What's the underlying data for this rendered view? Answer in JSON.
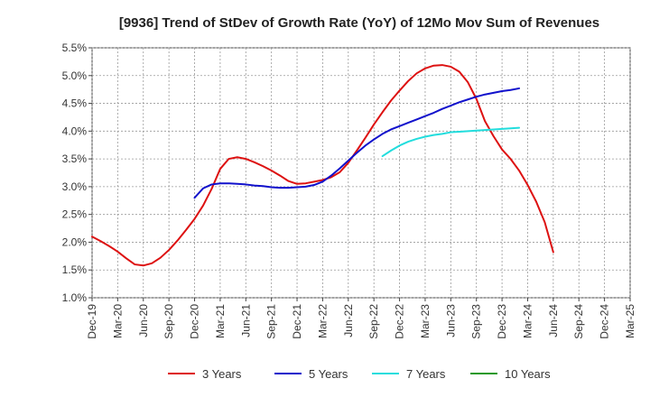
{
  "chart_data": {
    "type": "line",
    "title": "[9936]  Trend of StDev of Growth Rate (YoY) of 12Mo Mov Sum of Revenues",
    "xlabel": "",
    "ylabel": "",
    "ylim": [
      1.0,
      5.5
    ],
    "y_ticks": [
      1.0,
      1.5,
      2.0,
      2.5,
      3.0,
      3.5,
      4.0,
      4.5,
      5.0,
      5.5
    ],
    "y_tick_labels": [
      "1.0%",
      "1.5%",
      "2.0%",
      "2.5%",
      "3.0%",
      "3.5%",
      "4.0%",
      "4.5%",
      "5.0%",
      "5.5%"
    ],
    "x_tick_labels": [
      "Dec-19",
      "Mar-20",
      "Jun-20",
      "Sep-20",
      "Dec-20",
      "Mar-21",
      "Jun-21",
      "Sep-21",
      "Dec-21",
      "Mar-22",
      "Jun-22",
      "Sep-22",
      "Dec-22",
      "Mar-23",
      "Jun-23",
      "Sep-23",
      "Dec-23",
      "Mar-24",
      "Jun-24",
      "Sep-24",
      "Dec-24",
      "Mar-25"
    ],
    "grid": true,
    "legend_position": "bottom",
    "series": [
      {
        "name": "3 Years",
        "color": "#dd1111",
        "start_index": 0,
        "values": [
          2.1,
          2.02,
          1.93,
          1.83,
          1.71,
          1.6,
          1.58,
          1.62,
          1.72,
          1.86,
          2.03,
          2.22,
          2.42,
          2.66,
          2.96,
          3.32,
          3.5,
          3.53,
          3.5,
          3.44,
          3.37,
          3.29,
          3.2,
          3.1,
          3.05,
          3.06,
          3.09,
          3.12,
          3.17,
          3.26,
          3.43,
          3.65,
          3.88,
          4.12,
          4.34,
          4.55,
          4.73,
          4.9,
          5.04,
          5.13,
          5.18,
          5.19,
          5.16,
          5.07,
          4.88,
          4.58,
          4.18,
          3.91,
          3.67,
          3.5,
          3.29,
          3.03,
          2.73,
          2.36,
          1.82
        ]
      },
      {
        "name": "5 Years",
        "color": "#1111cc",
        "start_index": 12,
        "values": [
          2.8,
          2.97,
          3.04,
          3.06,
          3.06,
          3.05,
          3.04,
          3.02,
          3.01,
          2.99,
          2.98,
          2.98,
          2.99,
          3.0,
          3.03,
          3.09,
          3.2,
          3.33,
          3.47,
          3.61,
          3.74,
          3.85,
          3.95,
          4.03,
          4.09,
          4.15,
          4.21,
          4.27,
          4.33,
          4.4,
          4.46,
          4.52,
          4.57,
          4.62,
          4.66,
          4.69,
          4.72,
          4.74,
          4.77
        ]
      },
      {
        "name": "7 Years",
        "color": "#22dddd",
        "start_index": 34,
        "values": [
          3.55,
          3.65,
          3.74,
          3.81,
          3.86,
          3.9,
          3.93,
          3.95,
          3.98,
          3.99,
          4.0,
          4.01,
          4.02,
          4.03,
          4.04,
          4.05,
          4.06
        ]
      },
      {
        "name": "10 Years",
        "color": "#229922",
        "start_index": 0,
        "values": []
      }
    ]
  }
}
